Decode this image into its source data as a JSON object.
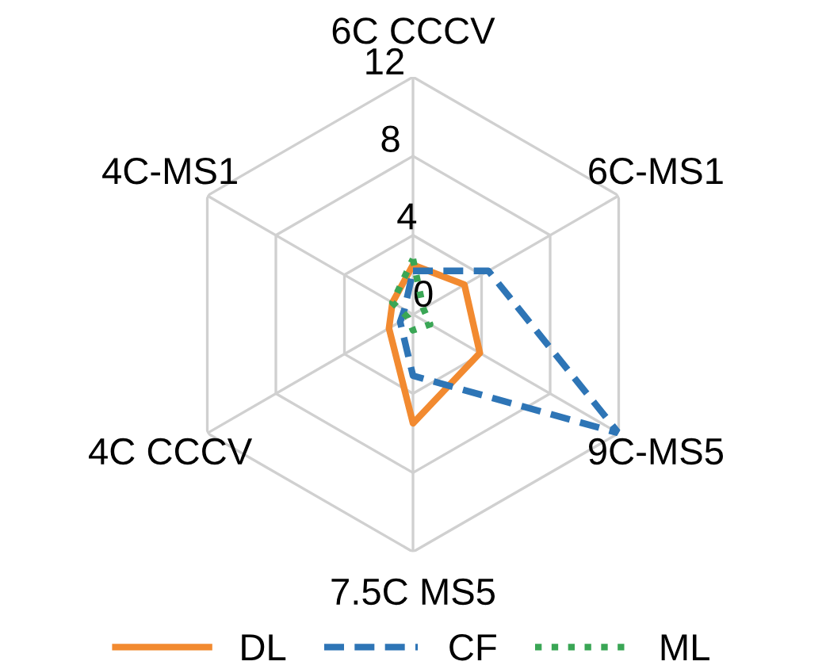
{
  "chart_data": {
    "type": "radar",
    "categories": [
      "6C CCCV",
      "6C-MS1",
      "9C-MS5",
      "7.5C MS5",
      "4C CCCV",
      "4C-MS1"
    ],
    "ylim": [
      0,
      12
    ],
    "yticks": [
      0,
      4,
      8,
      12
    ],
    "grid": true,
    "legend": "bottom",
    "series": [
      {
        "name": "DL",
        "color": "#f28a30",
        "line_style": "solid",
        "values": [
          2.5,
          3.0,
          3.9,
          5.5,
          1.4,
          1.2
        ]
      },
      {
        "name": "CF",
        "color": "#2e75b6",
        "line_style": "dashed",
        "values": [
          2.2,
          4.4,
          12,
          3.1,
          0.75,
          0.5
        ]
      },
      {
        "name": "ML",
        "color": "#3aa655",
        "line_style": "dotted",
        "values": [
          2.8,
          0.6,
          1.0,
          0.8,
          0.3,
          1.2
        ]
      }
    ]
  }
}
